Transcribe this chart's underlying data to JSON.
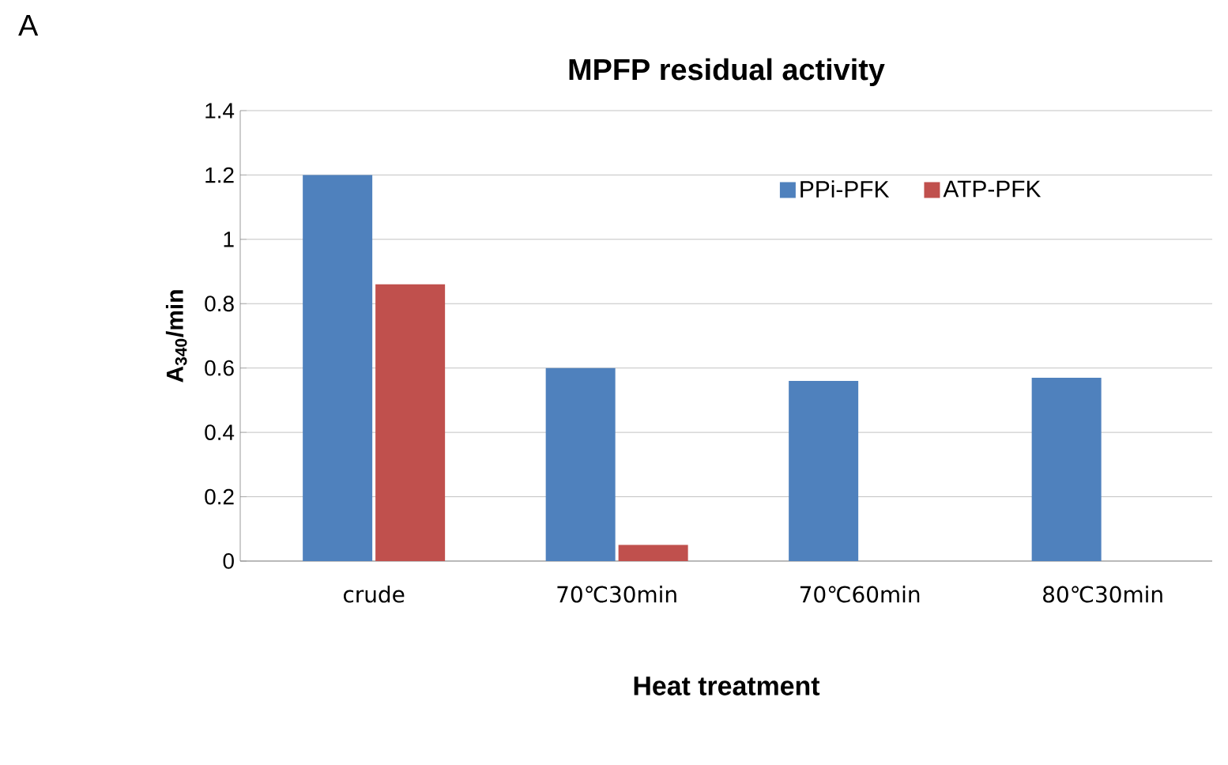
{
  "chart_data": {
    "type": "bar",
    "title": "MPFP residual activity",
    "xlabel": "Heat treatment",
    "ylabel": "A$_{340}$/min",
    "annotations": [
      "A"
    ],
    "categories": [
      "crude",
      "70℃30min",
      "70℃60min",
      "80℃30min"
    ],
    "series": [
      {
        "name": "PPi-PFK",
        "color": "#4f81bd",
        "values": [
          1.2,
          0.6,
          0.56,
          0.57
        ]
      },
      {
        "name": "ATP-PFK",
        "color": "#c0504d",
        "values": [
          0.86,
          0.05,
          null,
          null
        ]
      }
    ],
    "ylim": [
      0,
      1.4
    ],
    "yticks": [
      0,
      0.2,
      0.4,
      0.6,
      0.8,
      1,
      1.2,
      1.4
    ],
    "grid": "y",
    "legend": "top right"
  }
}
